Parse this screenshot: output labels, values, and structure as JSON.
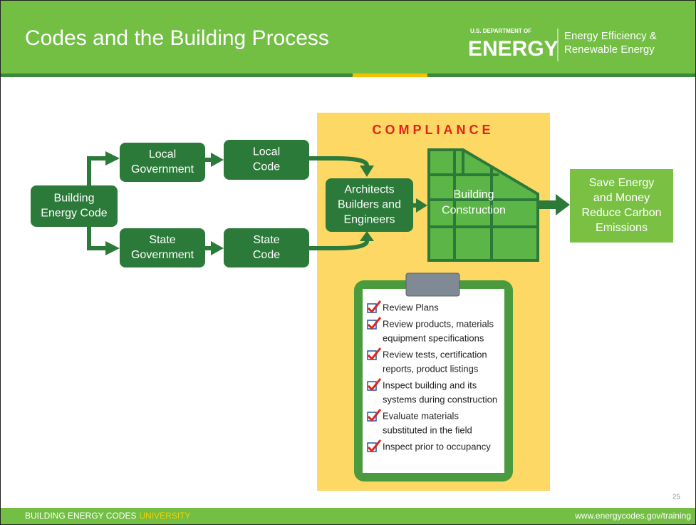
{
  "header": {
    "title": "Codes and the Building Process",
    "agency": "U.S. DEPARTMENT OF",
    "logo": "ENERGY",
    "office": [
      "Energy Efficiency &",
      "Renewable Energy"
    ]
  },
  "diagram": {
    "compliance": "COMPLIANCE",
    "nodes": [
      {
        "lines": [
          "Building",
          "Energy Code"
        ]
      },
      {
        "lines": [
          "Local",
          "Government"
        ]
      },
      {
        "lines": [
          "Local",
          "Code"
        ]
      },
      {
        "lines": [
          "State",
          "Government"
        ]
      },
      {
        "lines": [
          "State",
          "Code"
        ]
      },
      {
        "lines": [
          "Architects",
          "Builders and",
          "Engineers"
        ]
      },
      {
        "lines": [
          "Building",
          "Construction"
        ]
      },
      {
        "lines": [
          "Save Energy",
          "and Money",
          "Reduce Carbon",
          "Emissions"
        ]
      }
    ],
    "checklist": [
      {
        "lines": [
          "Review Plans"
        ]
      },
      {
        "lines": [
          "Review products, materials",
          "equipment specifications"
        ]
      },
      {
        "lines": [
          "Review tests, certification",
          "reports, product listings"
        ]
      },
      {
        "lines": [
          "Inspect building and its",
          "systems during construction"
        ]
      },
      {
        "lines": [
          "Evaluate materials",
          "substituted in the field"
        ]
      },
      {
        "lines": [
          "Inspect prior to occupancy"
        ]
      }
    ]
  },
  "footer": {
    "program": "BUILDING ENERGY CODES",
    "program_highlight": "UNIVERSITY",
    "url": "www.energycodes.gov/training",
    "page": 25
  }
}
